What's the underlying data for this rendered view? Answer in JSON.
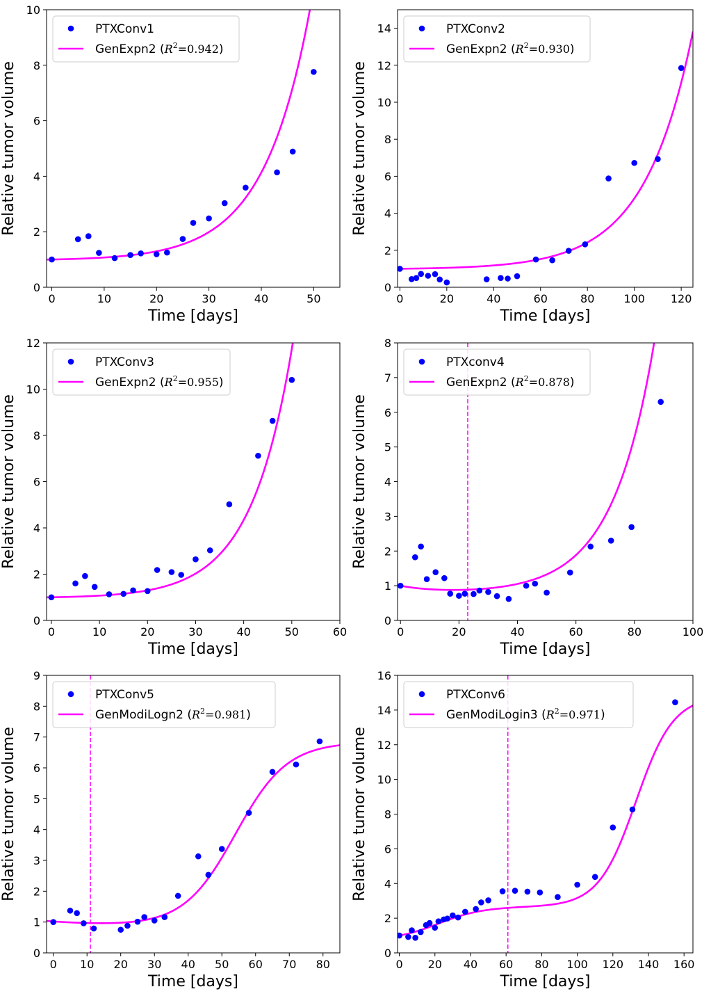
{
  "chart_data": [
    {
      "type": "scatter",
      "xlabel": "Time [days]",
      "ylabel": "Relative tumor volume",
      "xlim": [
        -1,
        55
      ],
      "ylim": [
        0,
        10
      ],
      "xticks": [
        0,
        10,
        20,
        30,
        40,
        50
      ],
      "yticks": [
        0,
        2,
        4,
        6,
        8,
        10
      ],
      "legend_position": "top-left",
      "series": [
        {
          "name": "PTXConv1",
          "kind": "points",
          "color": "#0000ff",
          "x": [
            0,
            5,
            7,
            9,
            12,
            15,
            17,
            20,
            22,
            25,
            27,
            30,
            33,
            37,
            43,
            46,
            50
          ],
          "y": [
            1.0,
            1.73,
            1.84,
            1.24,
            1.05,
            1.16,
            1.22,
            1.19,
            1.25,
            1.74,
            2.32,
            2.48,
            3.03,
            3.59,
            4.14,
            4.89,
            7.76
          ]
        },
        {
          "name": "GenExpn2",
          "kind": "fit",
          "color": "#ff00ff",
          "r2_label": "R",
          "r2_sup": "2",
          "r2_value": "=0.942",
          "model": {
            "form": "exp",
            "base": 1.0,
            "amp": 0.0345,
            "rate": 0.113
          }
        }
      ]
    },
    {
      "type": "scatter",
      "xlabel": "Time [days]",
      "ylabel": "Relative tumor volume",
      "xlim": [
        -1,
        125
      ],
      "ylim": [
        0,
        15
      ],
      "xticks": [
        0,
        20,
        40,
        60,
        80,
        100,
        120
      ],
      "yticks": [
        0,
        2,
        4,
        6,
        8,
        10,
        12,
        14
      ],
      "legend_position": "top-left",
      "series": [
        {
          "name": "PTXConv2",
          "kind": "points",
          "color": "#0000ff",
          "x": [
            0,
            5,
            7,
            9,
            12,
            15,
            17,
            20,
            37,
            43,
            46,
            50,
            58,
            65,
            72,
            79,
            89,
            100,
            110,
            120
          ],
          "y": [
            1.0,
            0.44,
            0.5,
            0.72,
            0.62,
            0.71,
            0.42,
            0.26,
            0.43,
            0.5,
            0.47,
            0.6,
            1.5,
            1.46,
            1.97,
            2.32,
            5.88,
            6.72,
            6.93,
            11.85
          ]
        },
        {
          "name": "GenExpn2",
          "kind": "fit",
          "color": "#ff00ff",
          "r2_label": "R",
          "r2_sup": "2",
          "r2_value": "=0.930",
          "model": {
            "form": "exp",
            "base": 1.0,
            "amp": 0.0303,
            "rate": 0.0484
          }
        }
      ]
    },
    {
      "type": "scatter",
      "xlabel": "Time [days]",
      "ylabel": "Relative tumor volume",
      "xlim": [
        -1,
        60
      ],
      "ylim": [
        0,
        12
      ],
      "xticks": [
        0,
        10,
        20,
        30,
        40,
        50,
        60
      ],
      "yticks": [
        0,
        2,
        4,
        6,
        8,
        10,
        12
      ],
      "legend_position": "top-left",
      "series": [
        {
          "name": "PTXConv3",
          "kind": "points",
          "color": "#0000ff",
          "x": [
            0,
            5,
            7,
            9,
            12,
            15,
            17,
            20,
            22,
            25,
            27,
            30,
            33,
            37,
            43,
            46,
            50
          ],
          "y": [
            1.0,
            1.6,
            1.92,
            1.45,
            1.13,
            1.15,
            1.3,
            1.27,
            2.18,
            2.09,
            1.97,
            2.64,
            3.03,
            5.02,
            7.12,
            8.63,
            10.4
          ]
        },
        {
          "name": "GenExpn2",
          "kind": "fit",
          "color": "#ff00ff",
          "r2_label": "R",
          "r2_sup": "2",
          "r2_value": "=0.955",
          "model": {
            "form": "exp",
            "base": 1.0,
            "amp": 0.0326,
            "rate": 0.116
          }
        }
      ]
    },
    {
      "type": "scatter",
      "xlabel": "Time [days]",
      "ylabel": "Relative tumor volume",
      "xlim": [
        -1,
        100
      ],
      "ylim": [
        0,
        8
      ],
      "xticks": [
        0,
        20,
        40,
        60,
        80,
        100
      ],
      "yticks": [
        0,
        1,
        2,
        3,
        4,
        5,
        6,
        7,
        8
      ],
      "legend_position": "top-left",
      "vline_x": 23,
      "series": [
        {
          "name": "PTXconv4",
          "kind": "points",
          "color": "#0000ff",
          "x": [
            0,
            5,
            7,
            9,
            12,
            15,
            17,
            20,
            22,
            25,
            27,
            30,
            33,
            37,
            43,
            46,
            50,
            58,
            65,
            72,
            79,
            89
          ],
          "y": [
            1.0,
            1.82,
            2.13,
            1.19,
            1.39,
            1.22,
            0.77,
            0.71,
            0.77,
            0.76,
            0.86,
            0.82,
            0.7,
            0.62,
            1.0,
            1.06,
            0.8,
            1.38,
            2.13,
            2.3,
            2.69,
            6.3
          ]
        },
        {
          "name": "GenExpn2",
          "kind": "fit",
          "color": "#ff00ff",
          "r2_label": "R",
          "r2_sup": "2",
          "r2_value": "=0.878",
          "model": {
            "form": "exp2",
            "c": 0.785,
            "a": 0.215,
            "ka": 0.08,
            "b": 0.0167,
            "kb": 0.07
          }
        }
      ]
    },
    {
      "type": "scatter",
      "xlabel": "Time [days]",
      "ylabel": "Relative tumor volume",
      "xlim": [
        -2,
        85
      ],
      "ylim": [
        0,
        9
      ],
      "xticks": [
        0,
        10,
        20,
        30,
        40,
        50,
        60,
        70,
        80
      ],
      "yticks": [
        0,
        1,
        2,
        3,
        4,
        5,
        6,
        7,
        8,
        9
      ],
      "legend_position": "top-left",
      "vline_x": 11,
      "series": [
        {
          "name": "PTXConv5",
          "kind": "points",
          "color": "#0000ff",
          "x": [
            0,
            5,
            7,
            9,
            12,
            20,
            22,
            25,
            27,
            30,
            33,
            37,
            43,
            46,
            50,
            58,
            65,
            72,
            79
          ],
          "y": [
            1.0,
            1.37,
            1.29,
            0.96,
            0.79,
            0.75,
            0.88,
            1.01,
            1.16,
            1.05,
            1.16,
            1.85,
            3.13,
            2.53,
            3.37,
            4.54,
            5.87,
            6.11,
            6.86
          ]
        },
        {
          "name": "GenModiLogn2",
          "kind": "fit",
          "color": "#ff00ff",
          "r2_label": "R",
          "r2_sup": "2",
          "r2_value": "=0.981",
          "model": {
            "form": "decay_logistic",
            "d0": 1.02,
            "dk": 0.045,
            "L": 6.0,
            "r": 0.13,
            "t0": 54,
            "off": 0.84
          }
        }
      ]
    },
    {
      "type": "scatter",
      "xlabel": "Time [days]",
      "ylabel": "Relative tumor volume",
      "xlim": [
        -1,
        165
      ],
      "ylim": [
        0,
        16
      ],
      "xticks": [
        0,
        20,
        40,
        60,
        80,
        100,
        120,
        140,
        160
      ],
      "yticks": [
        0,
        2,
        4,
        6,
        8,
        10,
        12,
        14,
        16
      ],
      "legend_position": "top-left",
      "vline_x": 61,
      "series": [
        {
          "name": "PTXConv6",
          "kind": "points",
          "color": "#0000ff",
          "x": [
            0,
            5,
            7,
            9,
            12,
            15,
            17,
            20,
            22,
            25,
            27,
            30,
            33,
            37,
            43,
            46,
            50,
            58,
            65,
            72,
            79,
            89,
            100,
            110,
            120,
            131,
            155
          ],
          "y": [
            1.0,
            0.92,
            1.3,
            0.87,
            1.2,
            1.6,
            1.72,
            1.45,
            1.82,
            1.93,
            1.98,
            2.16,
            2.04,
            2.37,
            2.53,
            2.91,
            3.03,
            3.55,
            3.58,
            3.53,
            3.48,
            3.22,
            3.93,
            4.38,
            7.23,
            8.27,
            14.45
          ]
        },
        {
          "name": "GenModiLogin3",
          "kind": "fit",
          "color": "#ff00ff",
          "r2_label": "R",
          "r2_sup": "2",
          "r2_value": "=0.971",
          "model": {
            "form": "double_logistic",
            "base": 1.0,
            "L1": 1.95,
            "r1": 0.08,
            "t1": 22,
            "L2": 12.15,
            "r2": 0.095,
            "t2": 133
          }
        }
      ]
    }
  ]
}
